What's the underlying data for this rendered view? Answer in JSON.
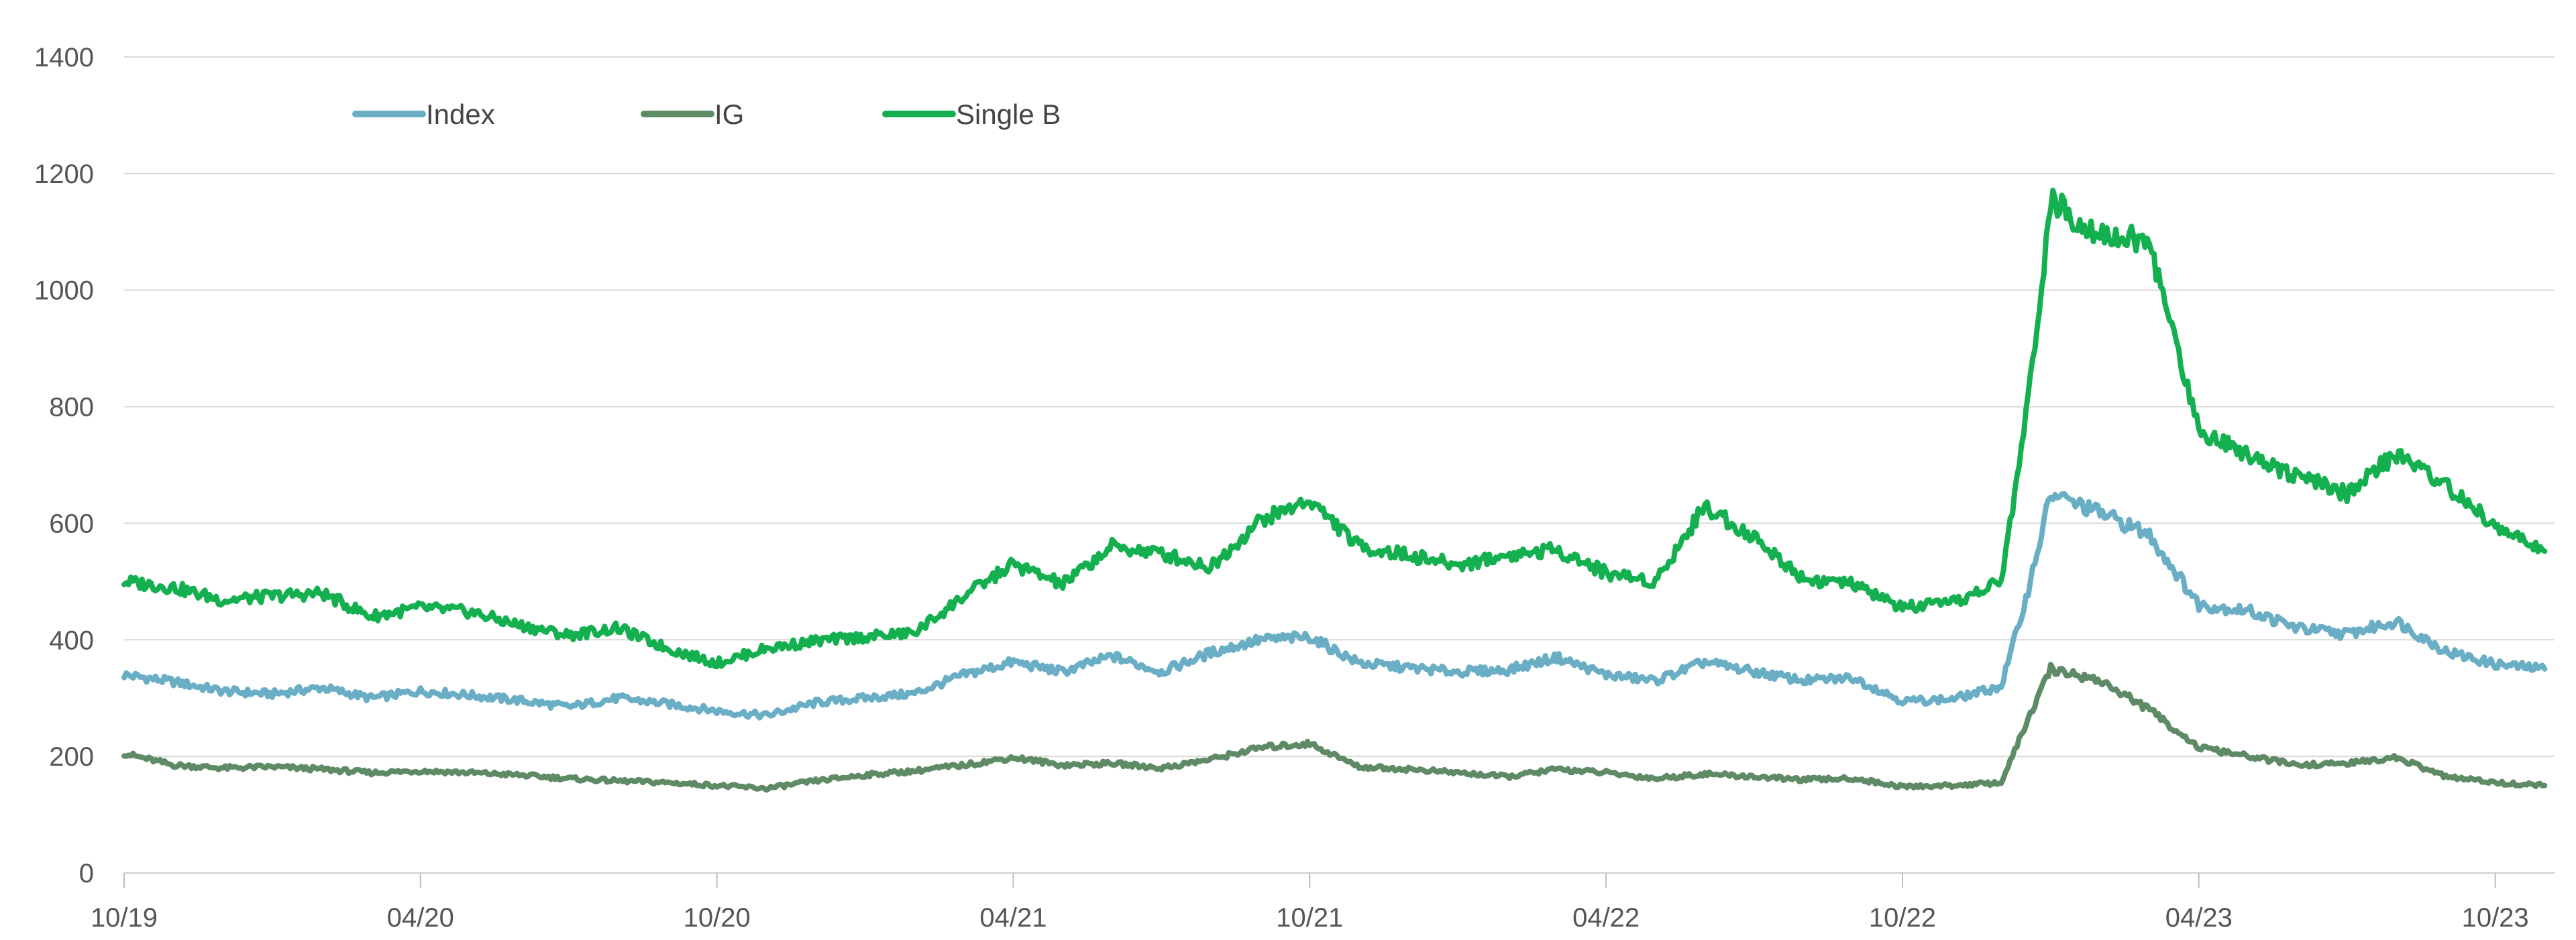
{
  "chart_data": {
    "type": "line",
    "title": "",
    "xlabel": "",
    "ylabel": "",
    "ylim": [
      0,
      1400
    ],
    "y_ticks": [
      0,
      200,
      400,
      600,
      800,
      1000,
      1200,
      1400
    ],
    "y_tick_labels": [
      "0",
      "200",
      "400",
      "600",
      "800",
      "1000",
      "1200",
      "1400"
    ],
    "x_tick_labels": [
      "10/19",
      "04/20",
      "10/20",
      "04/21",
      "10/21",
      "04/22",
      "10/22",
      "04/23",
      "10/23"
    ],
    "x_tick_months": [
      0,
      6,
      12,
      18,
      24,
      30,
      36,
      42,
      48
    ],
    "x_range_months": [
      0,
      49.2
    ],
    "grid": true,
    "legend_position": "top-left",
    "series": [
      {
        "name": "Index",
        "color": "#6aaec6",
        "points": [
          [
            0,
            340
          ],
          [
            1,
            328
          ],
          [
            2,
            312
          ],
          [
            3,
            307
          ],
          [
            4,
            318
          ],
          [
            5,
            300
          ],
          [
            6,
            312
          ],
          [
            7,
            305
          ],
          [
            8,
            296
          ],
          [
            9,
            285
          ],
          [
            10,
            300
          ],
          [
            11,
            290
          ],
          [
            12,
            278
          ],
          [
            13,
            270
          ],
          [
            14,
            292
          ],
          [
            15,
            300
          ],
          [
            16,
            308
          ],
          [
            17,
            340
          ],
          [
            18,
            362
          ],
          [
            19,
            345
          ],
          [
            20,
            372
          ],
          [
            21,
            345
          ],
          [
            22,
            378
          ],
          [
            23,
            400
          ],
          [
            24,
            405
          ],
          [
            25,
            360
          ],
          [
            26,
            352
          ],
          [
            27,
            345
          ],
          [
            28,
            348
          ],
          [
            29,
            370
          ],
          [
            30,
            340
          ],
          [
            31,
            330
          ],
          [
            32,
            362
          ],
          [
            33,
            345
          ],
          [
            34,
            330
          ],
          [
            35,
            335
          ],
          [
            36,
            295
          ],
          [
            37,
            298
          ],
          [
            38,
            320
          ],
          [
            38.5,
            470
          ],
          [
            39,
            650
          ],
          [
            40,
            618
          ],
          [
            41,
            580
          ],
          [
            42,
            460
          ],
          [
            43,
            450
          ],
          [
            44,
            420
          ],
          [
            45,
            410
          ],
          [
            46,
            432
          ],
          [
            47,
            380
          ],
          [
            48,
            358
          ],
          [
            49,
            350
          ]
        ]
      },
      {
        "name": "IG",
        "color": "#5f8a66",
        "points": [
          [
            0,
            205
          ],
          [
            1,
            185
          ],
          [
            2,
            180
          ],
          [
            3,
            182
          ],
          [
            4,
            178
          ],
          [
            5,
            172
          ],
          [
            6,
            175
          ],
          [
            7,
            172
          ],
          [
            8,
            168
          ],
          [
            9,
            162
          ],
          [
            10,
            158
          ],
          [
            11,
            155
          ],
          [
            12,
            150
          ],
          [
            13,
            145
          ],
          [
            14,
            158
          ],
          [
            15,
            168
          ],
          [
            16,
            175
          ],
          [
            17,
            185
          ],
          [
            18,
            198
          ],
          [
            19,
            185
          ],
          [
            20,
            188
          ],
          [
            21,
            180
          ],
          [
            22,
            195
          ],
          [
            23,
            215
          ],
          [
            24,
            222
          ],
          [
            25,
            182
          ],
          [
            26,
            178
          ],
          [
            27,
            172
          ],
          [
            28,
            165
          ],
          [
            29,
            178
          ],
          [
            30,
            172
          ],
          [
            31,
            162
          ],
          [
            32,
            170
          ],
          [
            33,
            165
          ],
          [
            34,
            160
          ],
          [
            35,
            162
          ],
          [
            36,
            148
          ],
          [
            37,
            150
          ],
          [
            38,
            155
          ],
          [
            38.5,
            255
          ],
          [
            39,
            350
          ],
          [
            40,
            330
          ],
          [
            41,
            280
          ],
          [
            42,
            215
          ],
          [
            43,
            200
          ],
          [
            44,
            185
          ],
          [
            45,
            188
          ],
          [
            46,
            198
          ],
          [
            47,
            165
          ],
          [
            48,
            155
          ],
          [
            49,
            150
          ]
        ]
      },
      {
        "name": "Single B",
        "color": "#14b04f",
        "points": [
          [
            0,
            500
          ],
          [
            1,
            490
          ],
          [
            2,
            468
          ],
          [
            3,
            475
          ],
          [
            4,
            480
          ],
          [
            5,
            440
          ],
          [
            6,
            455
          ],
          [
            7,
            448
          ],
          [
            8,
            425
          ],
          [
            9,
            408
          ],
          [
            10,
            420
          ],
          [
            11,
            385
          ],
          [
            12,
            360
          ],
          [
            13,
            385
          ],
          [
            14,
            398
          ],
          [
            15,
            405
          ],
          [
            16,
            412
          ],
          [
            17,
            475
          ],
          [
            18,
            530
          ],
          [
            19,
            495
          ],
          [
            20,
            560
          ],
          [
            21,
            548
          ],
          [
            22,
            525
          ],
          [
            23,
            605
          ],
          [
            24,
            640
          ],
          [
            25,
            560
          ],
          [
            26,
            545
          ],
          [
            27,
            528
          ],
          [
            28,
            545
          ],
          [
            29,
            555
          ],
          [
            30,
            515
          ],
          [
            31,
            500
          ],
          [
            32,
            630
          ],
          [
            33,
            575
          ],
          [
            34,
            505
          ],
          [
            35,
            495
          ],
          [
            36,
            455
          ],
          [
            37,
            462
          ],
          [
            38,
            500
          ],
          [
            38.5,
            780
          ],
          [
            39,
            1150
          ],
          [
            40,
            1100
          ],
          [
            41,
            1080
          ],
          [
            42,
            760
          ],
          [
            43,
            720
          ],
          [
            44,
            680
          ],
          [
            45,
            650
          ],
          [
            46,
            720
          ],
          [
            47,
            665
          ],
          [
            48,
            595
          ],
          [
            49,
            552
          ]
        ]
      }
    ]
  }
}
